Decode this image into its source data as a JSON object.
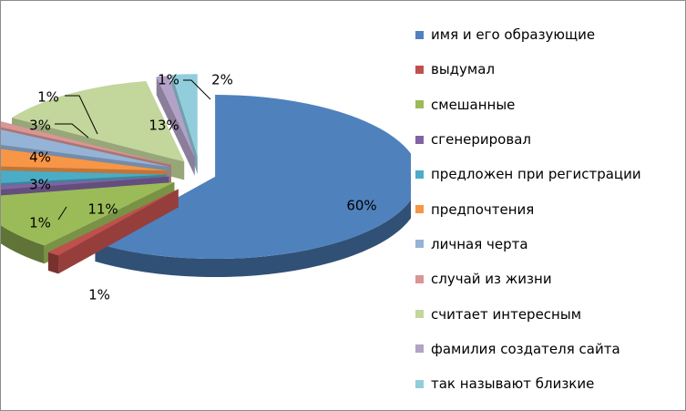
{
  "chart_data": {
    "type": "pie",
    "title": "",
    "series": [
      {
        "name": "имя и его образующие",
        "label": "60%",
        "value": 60,
        "color": "#4F81BD"
      },
      {
        "name": "выдумал",
        "label": "1%",
        "value": 1,
        "color": "#C0504D"
      },
      {
        "name": "смешанные",
        "label": "11%",
        "value": 11,
        "color": "#9BBB59"
      },
      {
        "name": "сгенерировал",
        "label": "1%",
        "value": 1,
        "color": "#8064A2"
      },
      {
        "name": "предложен при регистрации",
        "label": "3%",
        "value": 3,
        "color": "#4BACC6"
      },
      {
        "name": "предпочтения",
        "label": "4%",
        "value": 4,
        "color": "#F79646"
      },
      {
        "name": "личная черта",
        "label": "3%",
        "value": 3,
        "color": "#95B3D7"
      },
      {
        "name": "случай из жизни",
        "label": "1%",
        "value": 1,
        "color": "#D99694"
      },
      {
        "name": "считает интересным",
        "label": "13%",
        "value": 13,
        "color": "#C3D69B"
      },
      {
        "name": "фамилия создателя сайта",
        "label": "1%",
        "value": 1,
        "color": "#B2A2C7"
      },
      {
        "name": "так называют близкие",
        "label": "2%",
        "value": 2,
        "color": "#92CDDC"
      }
    ],
    "style": "3d-exploded-pie",
    "legend_position": "right"
  }
}
